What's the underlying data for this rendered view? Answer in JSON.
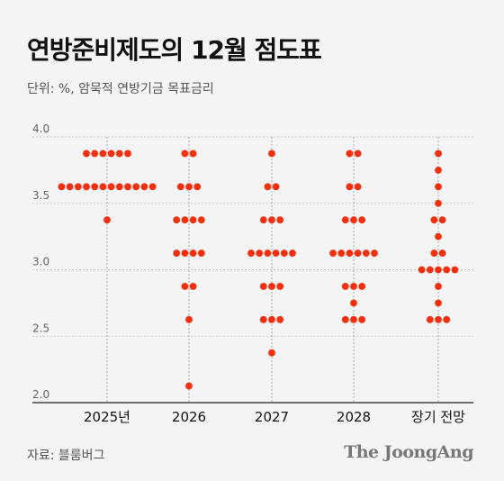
{
  "header": {
    "title": "연방준비제도의 12월 점도표",
    "subtitle": "단위: %, 암묵적 연방기금 목표금리"
  },
  "footer": {
    "source": "자료: 블룸버그",
    "brand": "The JoongAng"
  },
  "colors": {
    "dot": "#f2300f",
    "grid": "#c8c8c8",
    "axis": "#222222",
    "background": "#f4f4f4"
  },
  "chart_data": {
    "type": "scatter",
    "title": "연방준비제도의 12월 점도표",
    "subtitle": "단위: %, 암묵적 연방기금 목표금리",
    "categories": [
      "2025년",
      "2026",
      "2027",
      "2028",
      "장기 전망"
    ],
    "y_ticks": [
      "4.0",
      "3.5",
      "3.0",
      "2.5",
      "2.0"
    ],
    "ylim": [
      2.0,
      4.0
    ],
    "grid": "horizontal dotted + vertical dotted per category",
    "groups": [
      {
        "category": "2025년",
        "points": [
          {
            "y": 3.875,
            "count": 6
          },
          {
            "y": 3.625,
            "count": 12
          },
          {
            "y": 3.375,
            "count": 1
          }
        ]
      },
      {
        "category": "2026",
        "points": [
          {
            "y": 3.875,
            "count": 2
          },
          {
            "y": 3.625,
            "count": 3
          },
          {
            "y": 3.375,
            "count": 4
          },
          {
            "y": 3.125,
            "count": 4
          },
          {
            "y": 2.875,
            "count": 2
          },
          {
            "y": 2.625,
            "count": 1
          },
          {
            "y": 2.125,
            "count": 1
          }
        ]
      },
      {
        "category": "2027",
        "points": [
          {
            "y": 3.875,
            "count": 1
          },
          {
            "y": 3.625,
            "count": 2
          },
          {
            "y": 3.375,
            "count": 3
          },
          {
            "y": 3.125,
            "count": 6
          },
          {
            "y": 2.875,
            "count": 3
          },
          {
            "y": 2.625,
            "count": 3
          },
          {
            "y": 2.375,
            "count": 1
          }
        ]
      },
      {
        "category": "2028",
        "points": [
          {
            "y": 3.875,
            "count": 2
          },
          {
            "y": 3.625,
            "count": 2
          },
          {
            "y": 3.375,
            "count": 3
          },
          {
            "y": 3.125,
            "count": 6
          },
          {
            "y": 2.875,
            "count": 3
          },
          {
            "y": 2.75,
            "count": 1
          },
          {
            "y": 2.625,
            "count": 3
          }
        ]
      },
      {
        "category": "장기 전망",
        "points": [
          {
            "y": 3.875,
            "count": 1
          },
          {
            "y": 3.75,
            "count": 1
          },
          {
            "y": 3.625,
            "count": 1
          },
          {
            "y": 3.5,
            "count": 1
          },
          {
            "y": 3.375,
            "count": 2
          },
          {
            "y": 3.25,
            "count": 1
          },
          {
            "y": 3.125,
            "count": 2
          },
          {
            "y": 3.0,
            "count": 5
          },
          {
            "y": 2.875,
            "count": 1
          },
          {
            "y": 2.75,
            "count": 1
          },
          {
            "y": 2.625,
            "count": 3
          }
        ]
      }
    ]
  }
}
